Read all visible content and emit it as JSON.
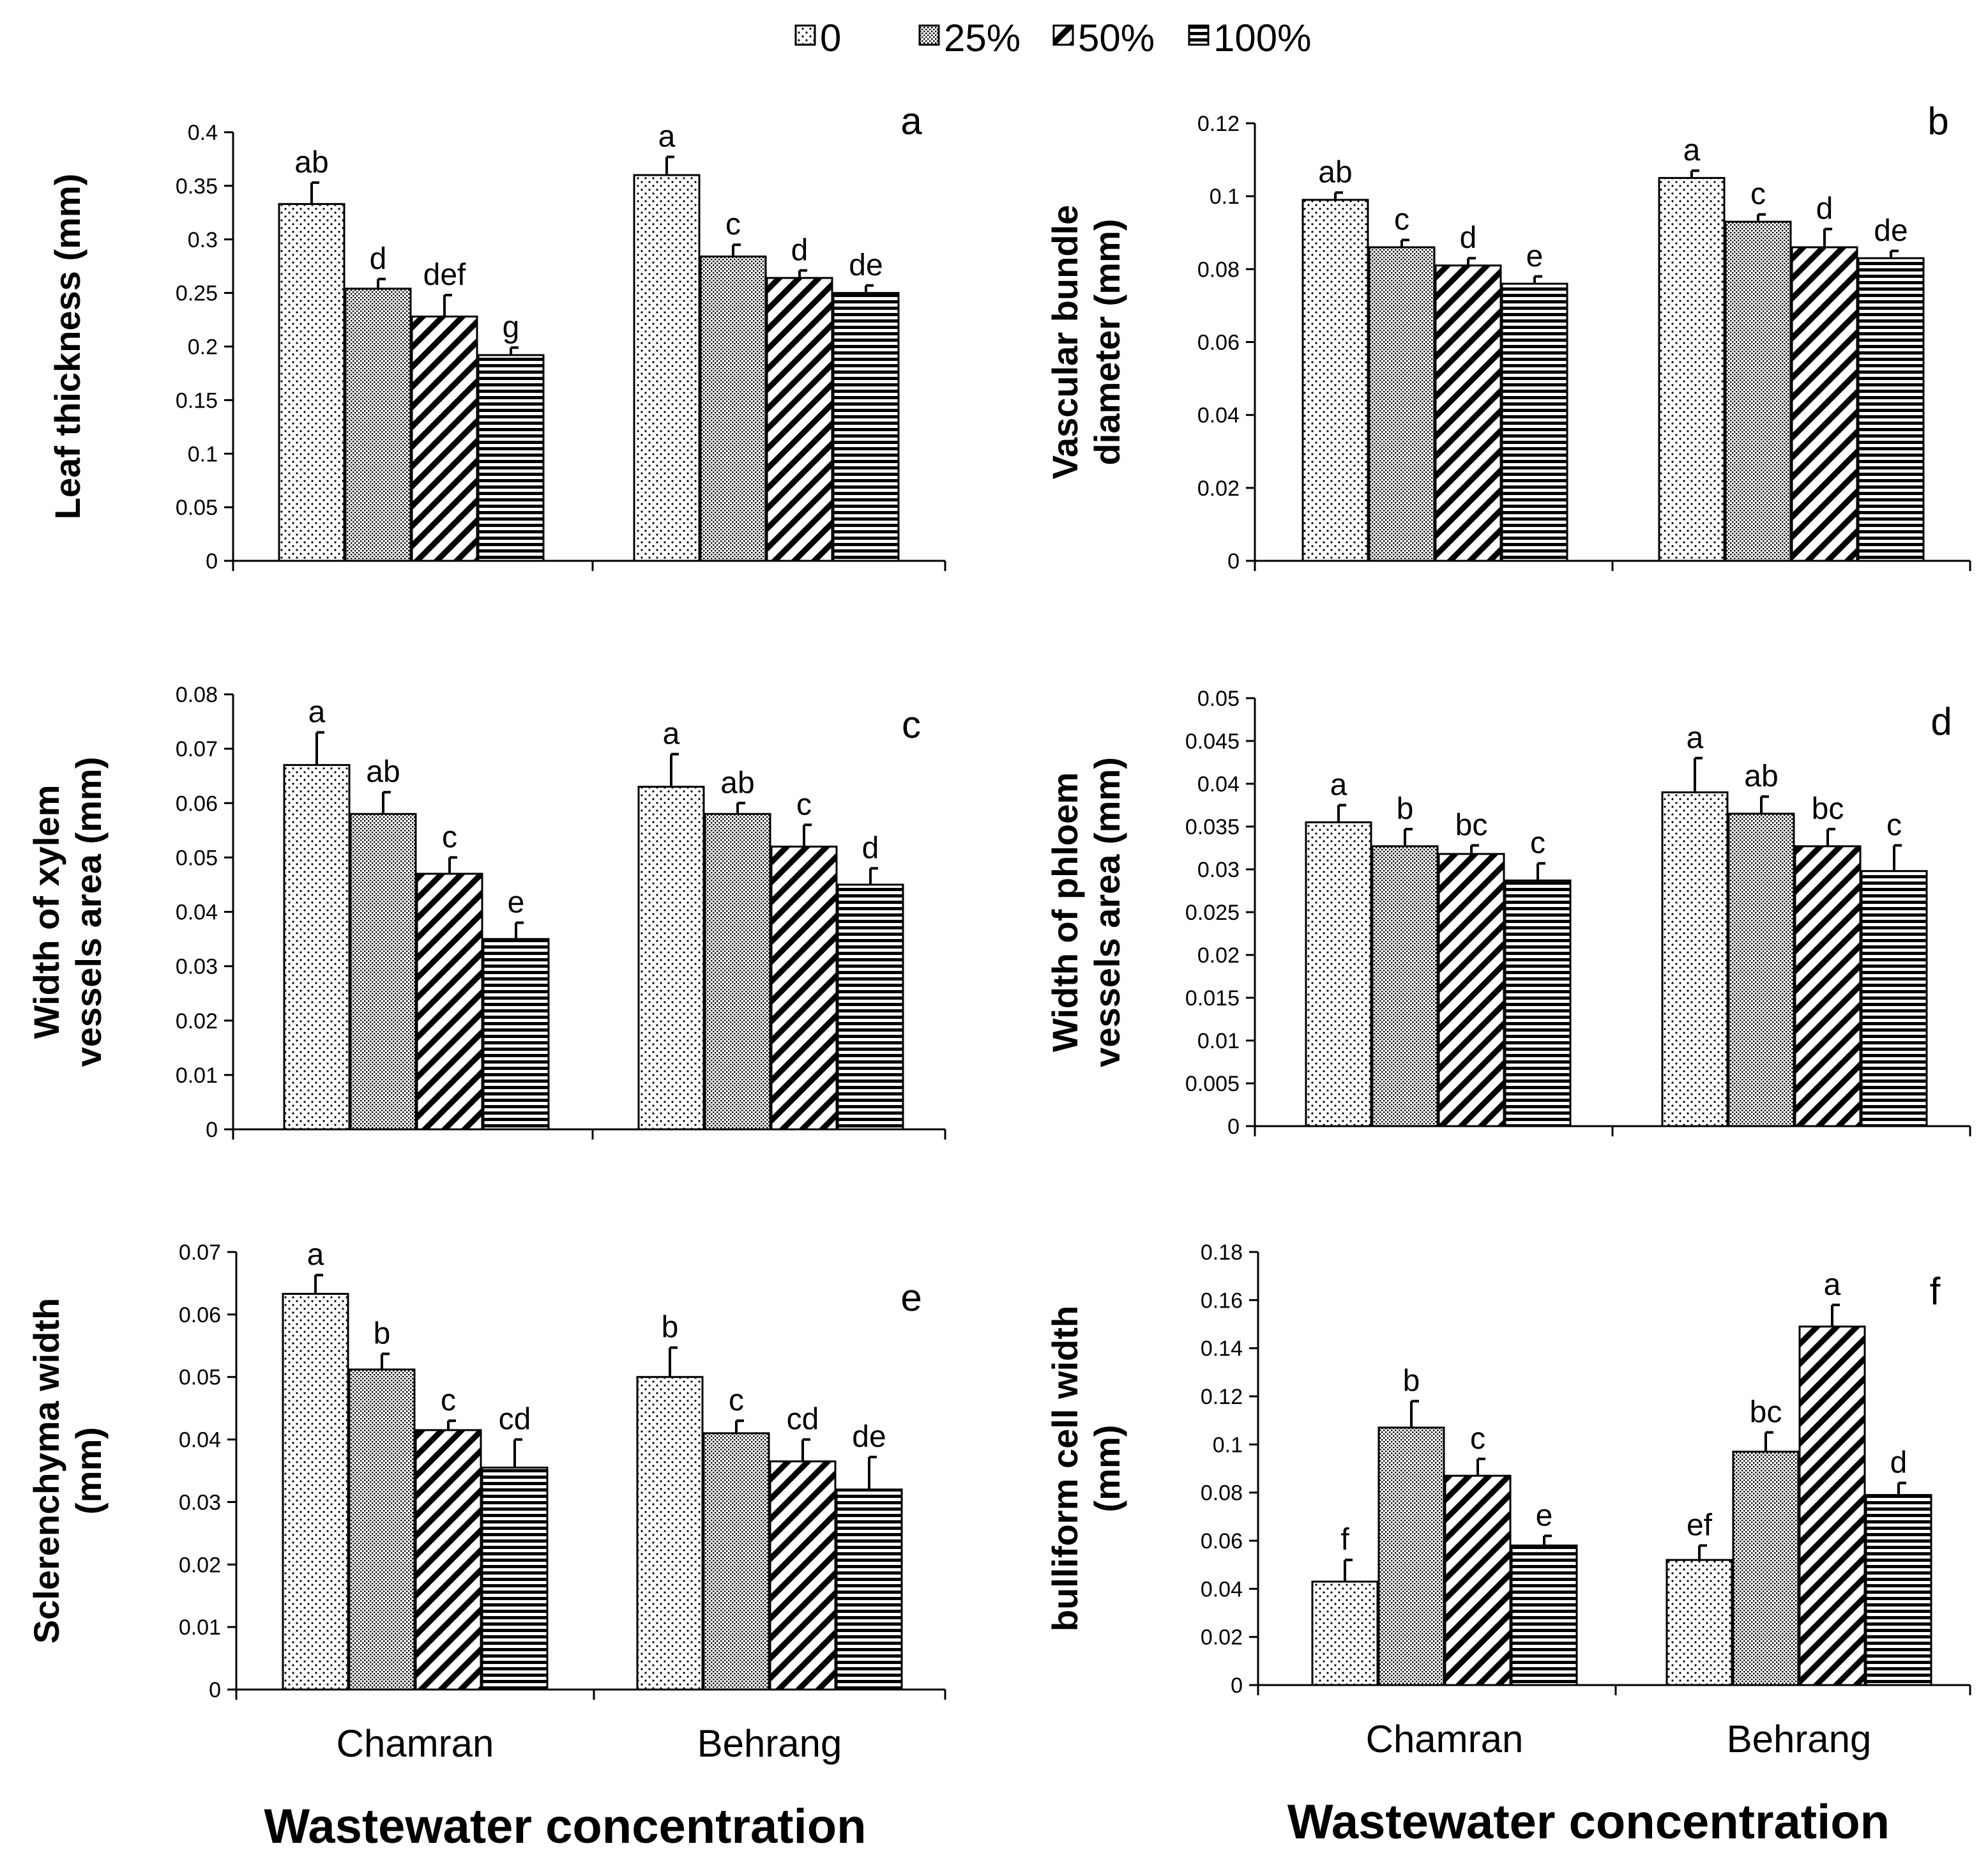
{
  "legend": {
    "series": [
      "0",
      "25%",
      "50%",
      "100%"
    ],
    "patterns": [
      "dots",
      "dense-dots",
      "diagonal-stripes",
      "horizontal-stripes"
    ]
  },
  "chart_data": [
    {
      "type": "bar",
      "panel_label": "a",
      "categories": [
        "Chamran",
        "Behrang"
      ],
      "ylabel": [
        "Leaf thickness (mm)"
      ],
      "ylim": [
        0,
        0.4
      ],
      "yticks": [
        "0",
        "0.05",
        "0.1",
        "0.15",
        "0.2",
        "0.25",
        "0.3",
        "0.35",
        "0.4"
      ],
      "show_category_labels": false,
      "series": [
        {
          "values": [
            0.333,
            0.36
          ],
          "errors": [
            0.02,
            0.017
          ],
          "letters": [
            "ab",
            "a"
          ]
        },
        {
          "values": [
            0.254,
            0.284
          ],
          "errors": [
            0.009,
            0.011
          ],
          "letters": [
            "d",
            "c"
          ]
        },
        {
          "values": [
            0.228,
            0.264
          ],
          "errors": [
            0.02,
            0.007
          ],
          "letters": [
            "def",
            "d"
          ]
        },
        {
          "values": [
            0.192,
            0.25
          ],
          "errors": [
            0.007,
            0.007
          ],
          "letters": [
            "g",
            "de"
          ]
        }
      ]
    },
    {
      "type": "bar",
      "panel_label": "b",
      "categories": [
        "Chamran",
        "Behrang"
      ],
      "ylabel": [
        "Vascular bundle",
        "diameter (mm)"
      ],
      "ylim": [
        0,
        0.12
      ],
      "yticks": [
        "0",
        "0.02",
        "0.04",
        "0.06",
        "0.08",
        "0.1",
        "0.12"
      ],
      "show_category_labels": false,
      "series": [
        {
          "values": [
            0.099,
            0.105
          ],
          "errors": [
            0.002,
            0.002
          ],
          "letters": [
            "ab",
            "a"
          ]
        },
        {
          "values": [
            0.086,
            0.093
          ],
          "errors": [
            0.002,
            0.002
          ],
          "letters": [
            "c",
            "c"
          ]
        },
        {
          "values": [
            0.081,
            0.086
          ],
          "errors": [
            0.002,
            0.005
          ],
          "letters": [
            "d",
            "d"
          ]
        },
        {
          "values": [
            0.076,
            0.083
          ],
          "errors": [
            0.002,
            0.002
          ],
          "letters": [
            "e",
            "de"
          ]
        }
      ]
    },
    {
      "type": "bar",
      "panel_label": "c",
      "categories": [
        "Chamran",
        "Behrang"
      ],
      "ylabel": [
        "Width of xylem",
        "vessels area (mm)"
      ],
      "ylim": [
        0,
        0.08
      ],
      "yticks": [
        "0",
        "0.01",
        "0.02",
        "0.03",
        "0.04",
        "0.05",
        "0.06",
        "0.07",
        "0.08"
      ],
      "show_category_labels": false,
      "series": [
        {
          "values": [
            0.067,
            0.063
          ],
          "errors": [
            0.006,
            0.006
          ],
          "letters": [
            "a",
            "a"
          ]
        },
        {
          "values": [
            0.058,
            0.058
          ],
          "errors": [
            0.004,
            0.002
          ],
          "letters": [
            "ab",
            "ab"
          ]
        },
        {
          "values": [
            0.047,
            0.052
          ],
          "errors": [
            0.003,
            0.004
          ],
          "letters": [
            "c",
            "c"
          ]
        },
        {
          "values": [
            0.035,
            0.045
          ],
          "errors": [
            0.003,
            0.003
          ],
          "letters": [
            "e",
            "d"
          ]
        }
      ]
    },
    {
      "type": "bar",
      "panel_label": "d",
      "categories": [
        "Chamran",
        "Behrang"
      ],
      "ylabel": [
        "Width of phloem",
        "vessels area (mm)"
      ],
      "ylim": [
        0,
        0.05
      ],
      "yticks": [
        "0",
        "0.005",
        "0.01",
        "0.015",
        "0.02",
        "0.025",
        "0.03",
        "0.035",
        "0.04",
        "0.045",
        "0.05"
      ],
      "show_category_labels": false,
      "series": [
        {
          "values": [
            0.0355,
            0.039
          ],
          "errors": [
            0.002,
            0.004
          ],
          "letters": [
            "a",
            "a"
          ]
        },
        {
          "values": [
            0.0327,
            0.0365
          ],
          "errors": [
            0.002,
            0.002
          ],
          "letters": [
            "b",
            "ab"
          ]
        },
        {
          "values": [
            0.0318,
            0.0327
          ],
          "errors": [
            0.001,
            0.002
          ],
          "letters": [
            "bc",
            "bc"
          ]
        },
        {
          "values": [
            0.0287,
            0.0298
          ],
          "errors": [
            0.002,
            0.003
          ],
          "letters": [
            "c",
            "c"
          ]
        }
      ]
    },
    {
      "type": "bar",
      "panel_label": "e",
      "categories": [
        "Chamran",
        "Behrang"
      ],
      "ylabel": [
        "Sclerenchyma width",
        "(mm)"
      ],
      "ylim": [
        0,
        0.07
      ],
      "yticks": [
        "0",
        "0.01",
        "0.02",
        "0.03",
        "0.04",
        "0.05",
        "0.06",
        "0.07"
      ],
      "show_category_labels": true,
      "xlabel": "Wastewater concentration",
      "series": [
        {
          "values": [
            0.0633,
            0.05
          ],
          "errors": [
            0.003,
            0.0047
          ],
          "letters": [
            "a",
            "b"
          ]
        },
        {
          "values": [
            0.0512,
            0.041
          ],
          "errors": [
            0.0025,
            0.002
          ],
          "letters": [
            "b",
            "c"
          ]
        },
        {
          "values": [
            0.0415,
            0.0365
          ],
          "errors": [
            0.0015,
            0.0035
          ],
          "letters": [
            "c",
            "cd"
          ]
        },
        {
          "values": [
            0.0355,
            0.032
          ],
          "errors": [
            0.0045,
            0.0052
          ],
          "letters": [
            "cd",
            "de"
          ]
        }
      ]
    },
    {
      "type": "bar",
      "panel_label": "f",
      "categories": [
        "Chamran",
        "Behrang"
      ],
      "ylabel": [
        "bulliform cell width",
        "(mm)"
      ],
      "ylim": [
        0,
        0.18
      ],
      "yticks": [
        "0",
        "0.02",
        "0.04",
        "0.06",
        "0.08",
        "0.1",
        "0.12",
        "0.14",
        "0.16",
        "0.18"
      ],
      "show_category_labels": true,
      "xlabel": "Wastewater concentration",
      "series": [
        {
          "values": [
            0.043,
            0.052
          ],
          "errors": [
            0.009,
            0.006
          ],
          "letters": [
            "f",
            "ef"
          ]
        },
        {
          "values": [
            0.107,
            0.097
          ],
          "errors": [
            0.011,
            0.008
          ],
          "letters": [
            "b",
            "bc"
          ]
        },
        {
          "values": [
            0.087,
            0.149
          ],
          "errors": [
            0.007,
            0.009
          ],
          "letters": [
            "c",
            "a"
          ]
        },
        {
          "values": [
            0.058,
            0.079
          ],
          "errors": [
            0.004,
            0.005
          ],
          "letters": [
            "e",
            "d"
          ]
        }
      ]
    }
  ]
}
